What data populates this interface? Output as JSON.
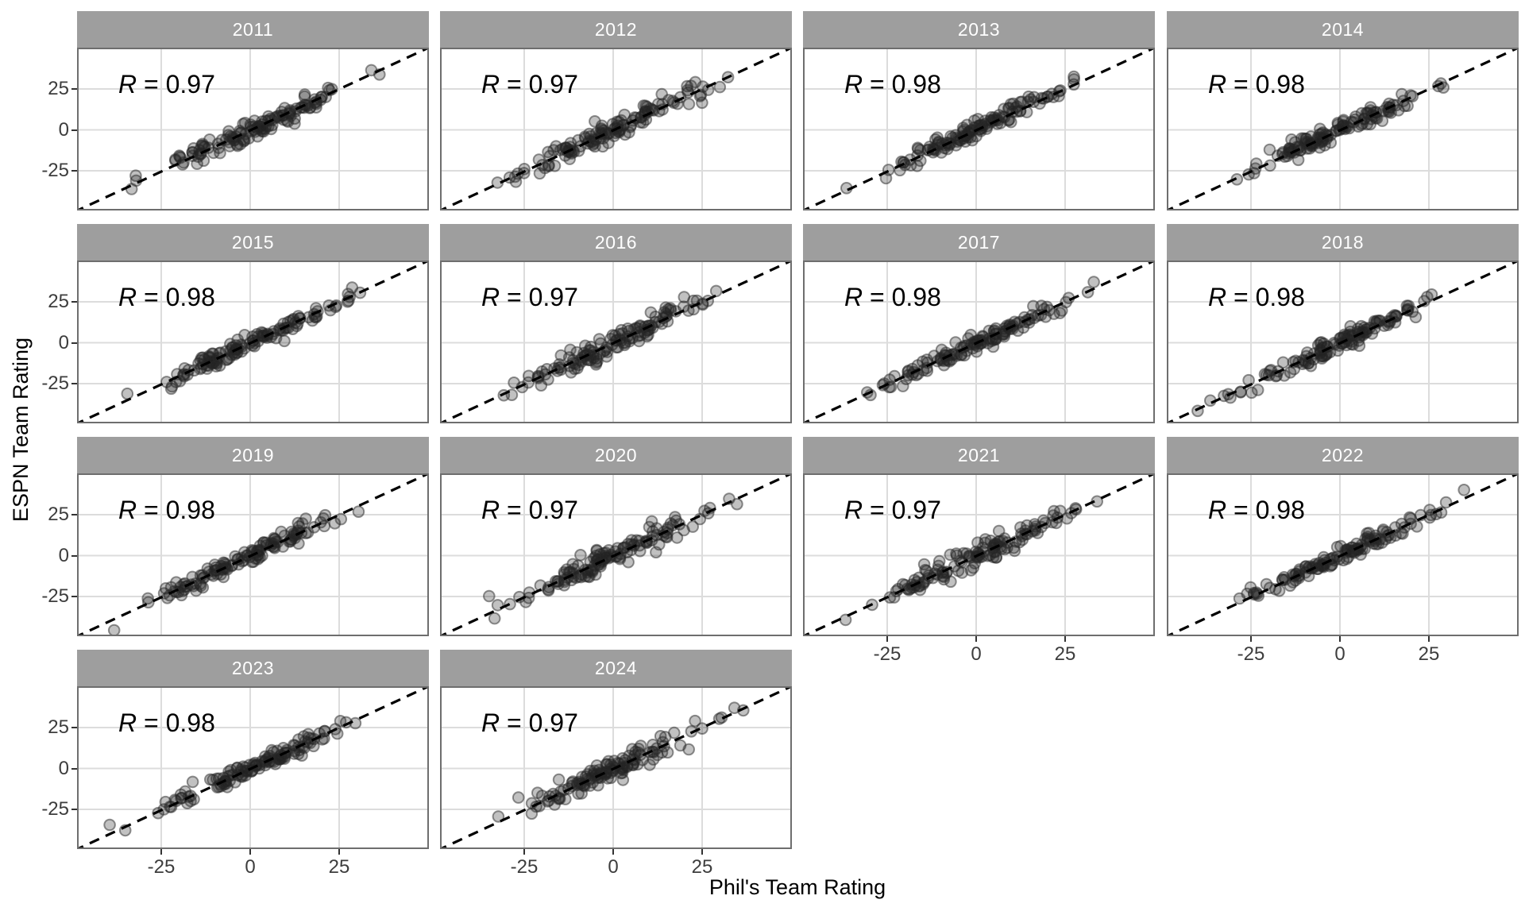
{
  "figure": {
    "background": "#ffffff",
    "x_axis_title": "Phil's Team Rating",
    "y_axis_title": "ESPN Team Rating"
  },
  "style": {
    "strip_fill": "#9e9e9e",
    "strip_text_color": "#ffffff",
    "panel_background": "#ffffff",
    "panel_border_color": "#6e6e6e",
    "grid_color": "#dcdcdc",
    "tick_label_color": "#3d3d3d",
    "tick_mark_color": "#333333",
    "point_fill": "rgba(32,32,32,0.28)",
    "point_stroke": "rgba(40,40,40,0.50)",
    "dashed_line_color": "#000000",
    "r_label_color": "#000000"
  },
  "chart_data": {
    "type": "scatter",
    "title": "",
    "facet_variable": "year",
    "facet_layout": {
      "n_cols": 4,
      "n_rows": 4
    },
    "xlabel": "Phil's Team Rating",
    "ylabel": "ESPN Team Rating",
    "xlim": [
      -49,
      50
    ],
    "ylim": [
      -49,
      50
    ],
    "x_ticks": [
      -25,
      0,
      25
    ],
    "x_tick_labels": [
      "-25",
      "0",
      "25"
    ],
    "y_ticks": [
      25,
      0,
      -25
    ],
    "y_tick_labels": [
      "25",
      "0",
      "-25"
    ],
    "grid": "major gridlines only, light gray on white panels",
    "legend": "none",
    "reference_line": "dashed black identity line y = x in every panel",
    "point_spread_sd": 13.2,
    "panels": [
      {
        "year": "2011",
        "r": 0.97,
        "r_label": "R = 0.97",
        "n_points": 130,
        "seed": 2011
      },
      {
        "year": "2012",
        "r": 0.97,
        "r_label": "R = 0.97",
        "n_points": 130,
        "seed": 2012
      },
      {
        "year": "2013",
        "r": 0.98,
        "r_label": "R = 0.98",
        "n_points": 130,
        "seed": 2013
      },
      {
        "year": "2014",
        "r": 0.98,
        "r_label": "R = 0.98",
        "n_points": 130,
        "seed": 2014
      },
      {
        "year": "2015",
        "r": 0.98,
        "r_label": "R = 0.98",
        "n_points": 130,
        "seed": 2015
      },
      {
        "year": "2016",
        "r": 0.97,
        "r_label": "R = 0.97",
        "n_points": 130,
        "seed": 2016
      },
      {
        "year": "2017",
        "r": 0.98,
        "r_label": "R = 0.98",
        "n_points": 130,
        "seed": 2017
      },
      {
        "year": "2018",
        "r": 0.98,
        "r_label": "R = 0.98",
        "n_points": 130,
        "seed": 2018
      },
      {
        "year": "2019",
        "r": 0.98,
        "r_label": "R = 0.98",
        "n_points": 130,
        "seed": 2019
      },
      {
        "year": "2020",
        "r": 0.97,
        "r_label": "R = 0.97",
        "n_points": 130,
        "seed": 2020
      },
      {
        "year": "2021",
        "r": 0.97,
        "r_label": "R = 0.97",
        "n_points": 130,
        "seed": 2021
      },
      {
        "year": "2022",
        "r": 0.98,
        "r_label": "R = 0.98",
        "n_points": 130,
        "seed": 2022
      },
      {
        "year": "2023",
        "r": 0.98,
        "r_label": "R = 0.98",
        "n_points": 130,
        "seed": 2023
      },
      {
        "year": "2024",
        "r": 0.97,
        "r_label": "R = 0.97",
        "n_points": 130,
        "seed": 2024
      }
    ]
  }
}
